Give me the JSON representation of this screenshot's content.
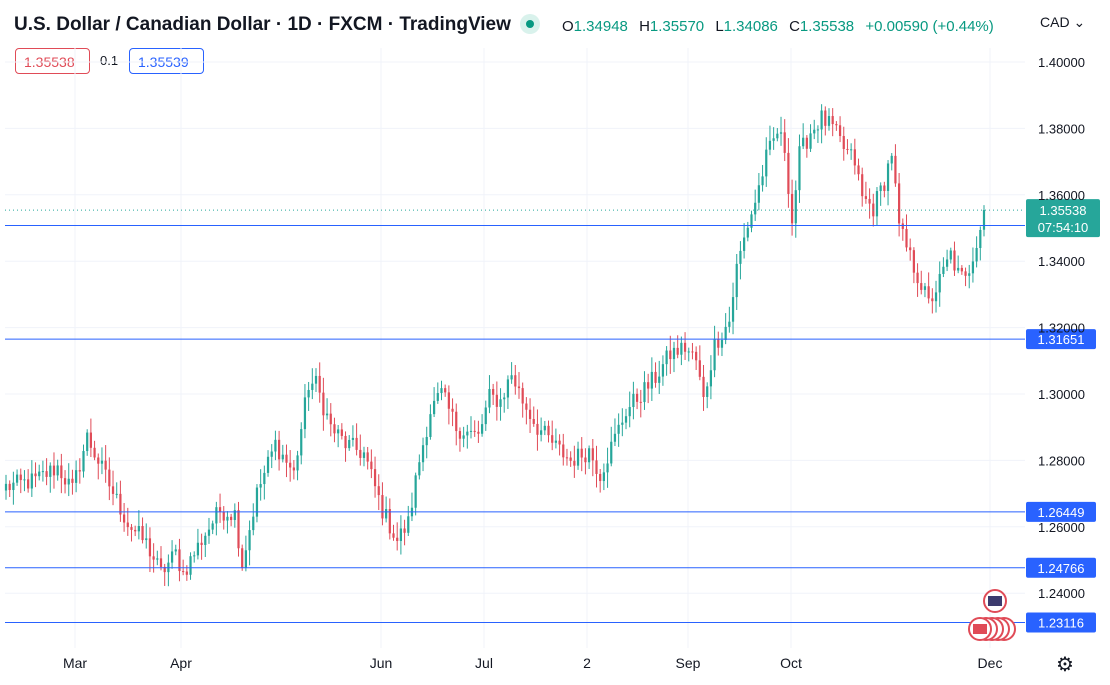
{
  "header": {
    "title": "U.S. Dollar / Canadian Dollar · 1D · FXCM · TradingView",
    "ohlc": [
      {
        "k": "O",
        "v": "1.34948"
      },
      {
        "k": "H",
        "v": "1.35570"
      },
      {
        "k": "L",
        "v": "1.34086"
      },
      {
        "k": "C",
        "v": "1.35538"
      },
      {
        "k": "",
        "v": "+0.00590 (+0.44%)"
      }
    ],
    "currency": "CAD"
  },
  "trade": {
    "sell": "1.35538",
    "spread": "0.1",
    "buy": "1.35539"
  },
  "colors": {
    "up": "#26a69a",
    "down": "#e04b57",
    "line": "#2962ff",
    "grid": "#f0f3fa",
    "text": "#131722"
  },
  "chart_data": {
    "type": "candlestick",
    "y_ticks": [
      "1.40000",
      "1.38000",
      "1.36000",
      "1.34000",
      "1.32000",
      "1.30000",
      "1.28000",
      "1.26000",
      "1.24000"
    ],
    "ylim": [
      1.2285,
      1.4135
    ],
    "x_labels": [
      "Mar",
      "Apr",
      "Jun",
      "Jul",
      "2",
      "Sep",
      "Oct",
      "Dec"
    ],
    "horizontal_lines": [
      {
        "label": "1.35076",
        "value": 1.35076
      },
      {
        "label": "1.31651",
        "value": 1.31651
      },
      {
        "label": "1.26449",
        "value": 1.26449
      },
      {
        "label": "1.24766",
        "value": 1.24766
      },
      {
        "label": "1.23116",
        "value": 1.23116
      }
    ],
    "last_price": {
      "label": "1.35538",
      "value": 1.35538,
      "countdown": "07:54:10"
    },
    "waypoints": [
      [
        0,
        1.272
      ],
      [
        8,
        1.274
      ],
      [
        14,
        1.278
      ],
      [
        18,
        1.271
      ],
      [
        22,
        1.287
      ],
      [
        27,
        1.275
      ],
      [
        33,
        1.261
      ],
      [
        38,
        1.255
      ],
      [
        42,
        1.246
      ],
      [
        46,
        1.252
      ],
      [
        48,
        1.246
      ],
      [
        54,
        1.258
      ],
      [
        58,
        1.265
      ],
      [
        62,
        1.264
      ],
      [
        64,
        1.249
      ],
      [
        68,
        1.27
      ],
      [
        73,
        1.285
      ],
      [
        78,
        1.276
      ],
      [
        82,
        1.303
      ],
      [
        84,
        1.303
      ],
      [
        88,
        1.29
      ],
      [
        92,
        1.285
      ],
      [
        97,
        1.282
      ],
      [
        102,
        1.265
      ],
      [
        106,
        1.256
      ],
      [
        109,
        1.261
      ],
      [
        112,
        1.28
      ],
      [
        115,
        1.295
      ],
      [
        118,
        1.3
      ],
      [
        122,
        1.29
      ],
      [
        128,
        1.287
      ],
      [
        131,
        1.299
      ],
      [
        134,
        1.298
      ],
      [
        137,
        1.306
      ],
      [
        140,
        1.298
      ],
      [
        144,
        1.29
      ],
      [
        149,
        1.284
      ],
      [
        153,
        1.28
      ],
      [
        158,
        1.283
      ],
      [
        161,
        1.276
      ],
      [
        164,
        1.284
      ],
      [
        168,
        1.295
      ],
      [
        172,
        1.3
      ],
      [
        176,
        1.305
      ],
      [
        180,
        1.312
      ],
      [
        184,
        1.314
      ],
      [
        187,
        1.31
      ],
      [
        189,
        1.298
      ],
      [
        192,
        1.315
      ],
      [
        196,
        1.322
      ],
      [
        198,
        1.338
      ],
      [
        201,
        1.351
      ],
      [
        203,
        1.358
      ],
      [
        206,
        1.371
      ],
      [
        209,
        1.379
      ],
      [
        211,
        1.374
      ],
      [
        213,
        1.352
      ],
      [
        215,
        1.372
      ],
      [
        218,
        1.379
      ],
      [
        221,
        1.383
      ],
      [
        224,
        1.38
      ],
      [
        227,
        1.374
      ],
      [
        230,
        1.37
      ],
      [
        232,
        1.359
      ],
      [
        235,
        1.356
      ],
      [
        238,
        1.364
      ],
      [
        240,
        1.373
      ],
      [
        242,
        1.35
      ],
      [
        245,
        1.341
      ],
      [
        248,
        1.333
      ],
      [
        250,
        1.327
      ],
      [
        253,
        1.334
      ],
      [
        256,
        1.342
      ],
      [
        258,
        1.336
      ],
      [
        260,
        1.334
      ],
      [
        262,
        1.342
      ],
      [
        265,
        1.3554
      ]
    ]
  }
}
